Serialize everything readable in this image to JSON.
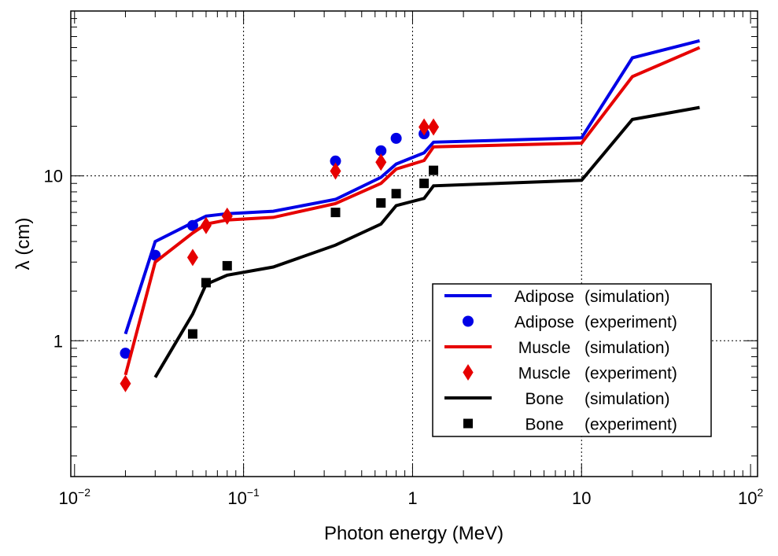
{
  "chart_data": {
    "type": "line",
    "title": "",
    "xlabel": "Photon energy (MeV)",
    "ylabel": "λ (cm)",
    "xscale": "log",
    "yscale": "log",
    "xlim": [
      0.0095,
      110
    ],
    "ylim": [
      0.15,
      100
    ],
    "grid": true,
    "legend_position": "lower-right",
    "x_tick_labels": [
      {
        "value": 0.01,
        "base": "10",
        "exp": "−2"
      },
      {
        "value": 0.1,
        "base": "10",
        "exp": "−1"
      },
      {
        "value": 1,
        "base": "1",
        "exp": ""
      },
      {
        "value": 10,
        "base": "10",
        "exp": ""
      },
      {
        "value": 100,
        "base": "10",
        "exp": "2"
      }
    ],
    "y_tick_labels": [
      {
        "value": 1,
        "label": "1"
      },
      {
        "value": 10,
        "label": "10"
      }
    ],
    "series": [
      {
        "name": "Adipose",
        "kind": "simulation",
        "legend": [
          "Adipose",
          "(simulation)"
        ],
        "color": "#0000e6",
        "style": "line",
        "x": [
          0.02,
          0.03,
          0.05,
          0.06,
          0.08,
          0.15,
          0.35,
          0.65,
          0.8,
          1.17,
          1.33,
          10,
          20,
          50
        ],
        "y": [
          1.1,
          4.0,
          5.2,
          5.7,
          5.9,
          6.1,
          7.2,
          9.8,
          11.8,
          13.8,
          16.0,
          17.0,
          52,
          66
        ]
      },
      {
        "name": "Adipose",
        "kind": "experiment",
        "legend": [
          "Adipose",
          "(experiment)"
        ],
        "color": "#0000e6",
        "style": "circle",
        "x": [
          0.02,
          0.03,
          0.05,
          0.35,
          0.65,
          0.8,
          1.17
        ],
        "y": [
          0.84,
          3.3,
          5.0,
          12.3,
          14.2,
          16.9,
          18.0
        ]
      },
      {
        "name": "Muscle",
        "kind": "simulation",
        "legend": [
          "Muscle",
          "(simulation)"
        ],
        "color": "#e60000",
        "style": "line",
        "x": [
          0.02,
          0.03,
          0.05,
          0.06,
          0.08,
          0.15,
          0.35,
          0.65,
          0.8,
          1.17,
          1.33,
          10,
          20,
          50
        ],
        "y": [
          0.62,
          3.0,
          4.5,
          5.1,
          5.4,
          5.6,
          6.8,
          9.0,
          11.0,
          12.4,
          15.0,
          15.8,
          40,
          60
        ]
      },
      {
        "name": "Muscle",
        "kind": "experiment",
        "legend": [
          "Muscle",
          "(experiment)"
        ],
        "color": "#e60000",
        "style": "diamond",
        "x": [
          0.02,
          0.05,
          0.06,
          0.08,
          0.35,
          0.65,
          1.17,
          1.33
        ],
        "y": [
          0.55,
          3.2,
          5.0,
          5.7,
          10.7,
          12.1,
          19.8,
          19.8
        ]
      },
      {
        "name": "Bone",
        "kind": "simulation",
        "legend": [
          "Bone",
          "(simulation)"
        ],
        "color": "#000000",
        "style": "line",
        "x": [
          0.03,
          0.05,
          0.06,
          0.08,
          0.15,
          0.35,
          0.65,
          0.8,
          1.17,
          1.33,
          10,
          20,
          50
        ],
        "y": [
          0.6,
          1.45,
          2.2,
          2.5,
          2.8,
          3.8,
          5.1,
          6.6,
          7.3,
          8.7,
          9.4,
          22,
          26
        ]
      },
      {
        "name": "Bone",
        "kind": "experiment",
        "legend": [
          "Bone",
          "(experiment)"
        ],
        "color": "#000000",
        "style": "square",
        "x": [
          0.05,
          0.06,
          0.08,
          0.35,
          0.65,
          0.8,
          1.17,
          1.33
        ],
        "y": [
          1.1,
          2.25,
          2.85,
          6.0,
          6.85,
          7.8,
          9.0,
          10.8
        ]
      }
    ]
  }
}
